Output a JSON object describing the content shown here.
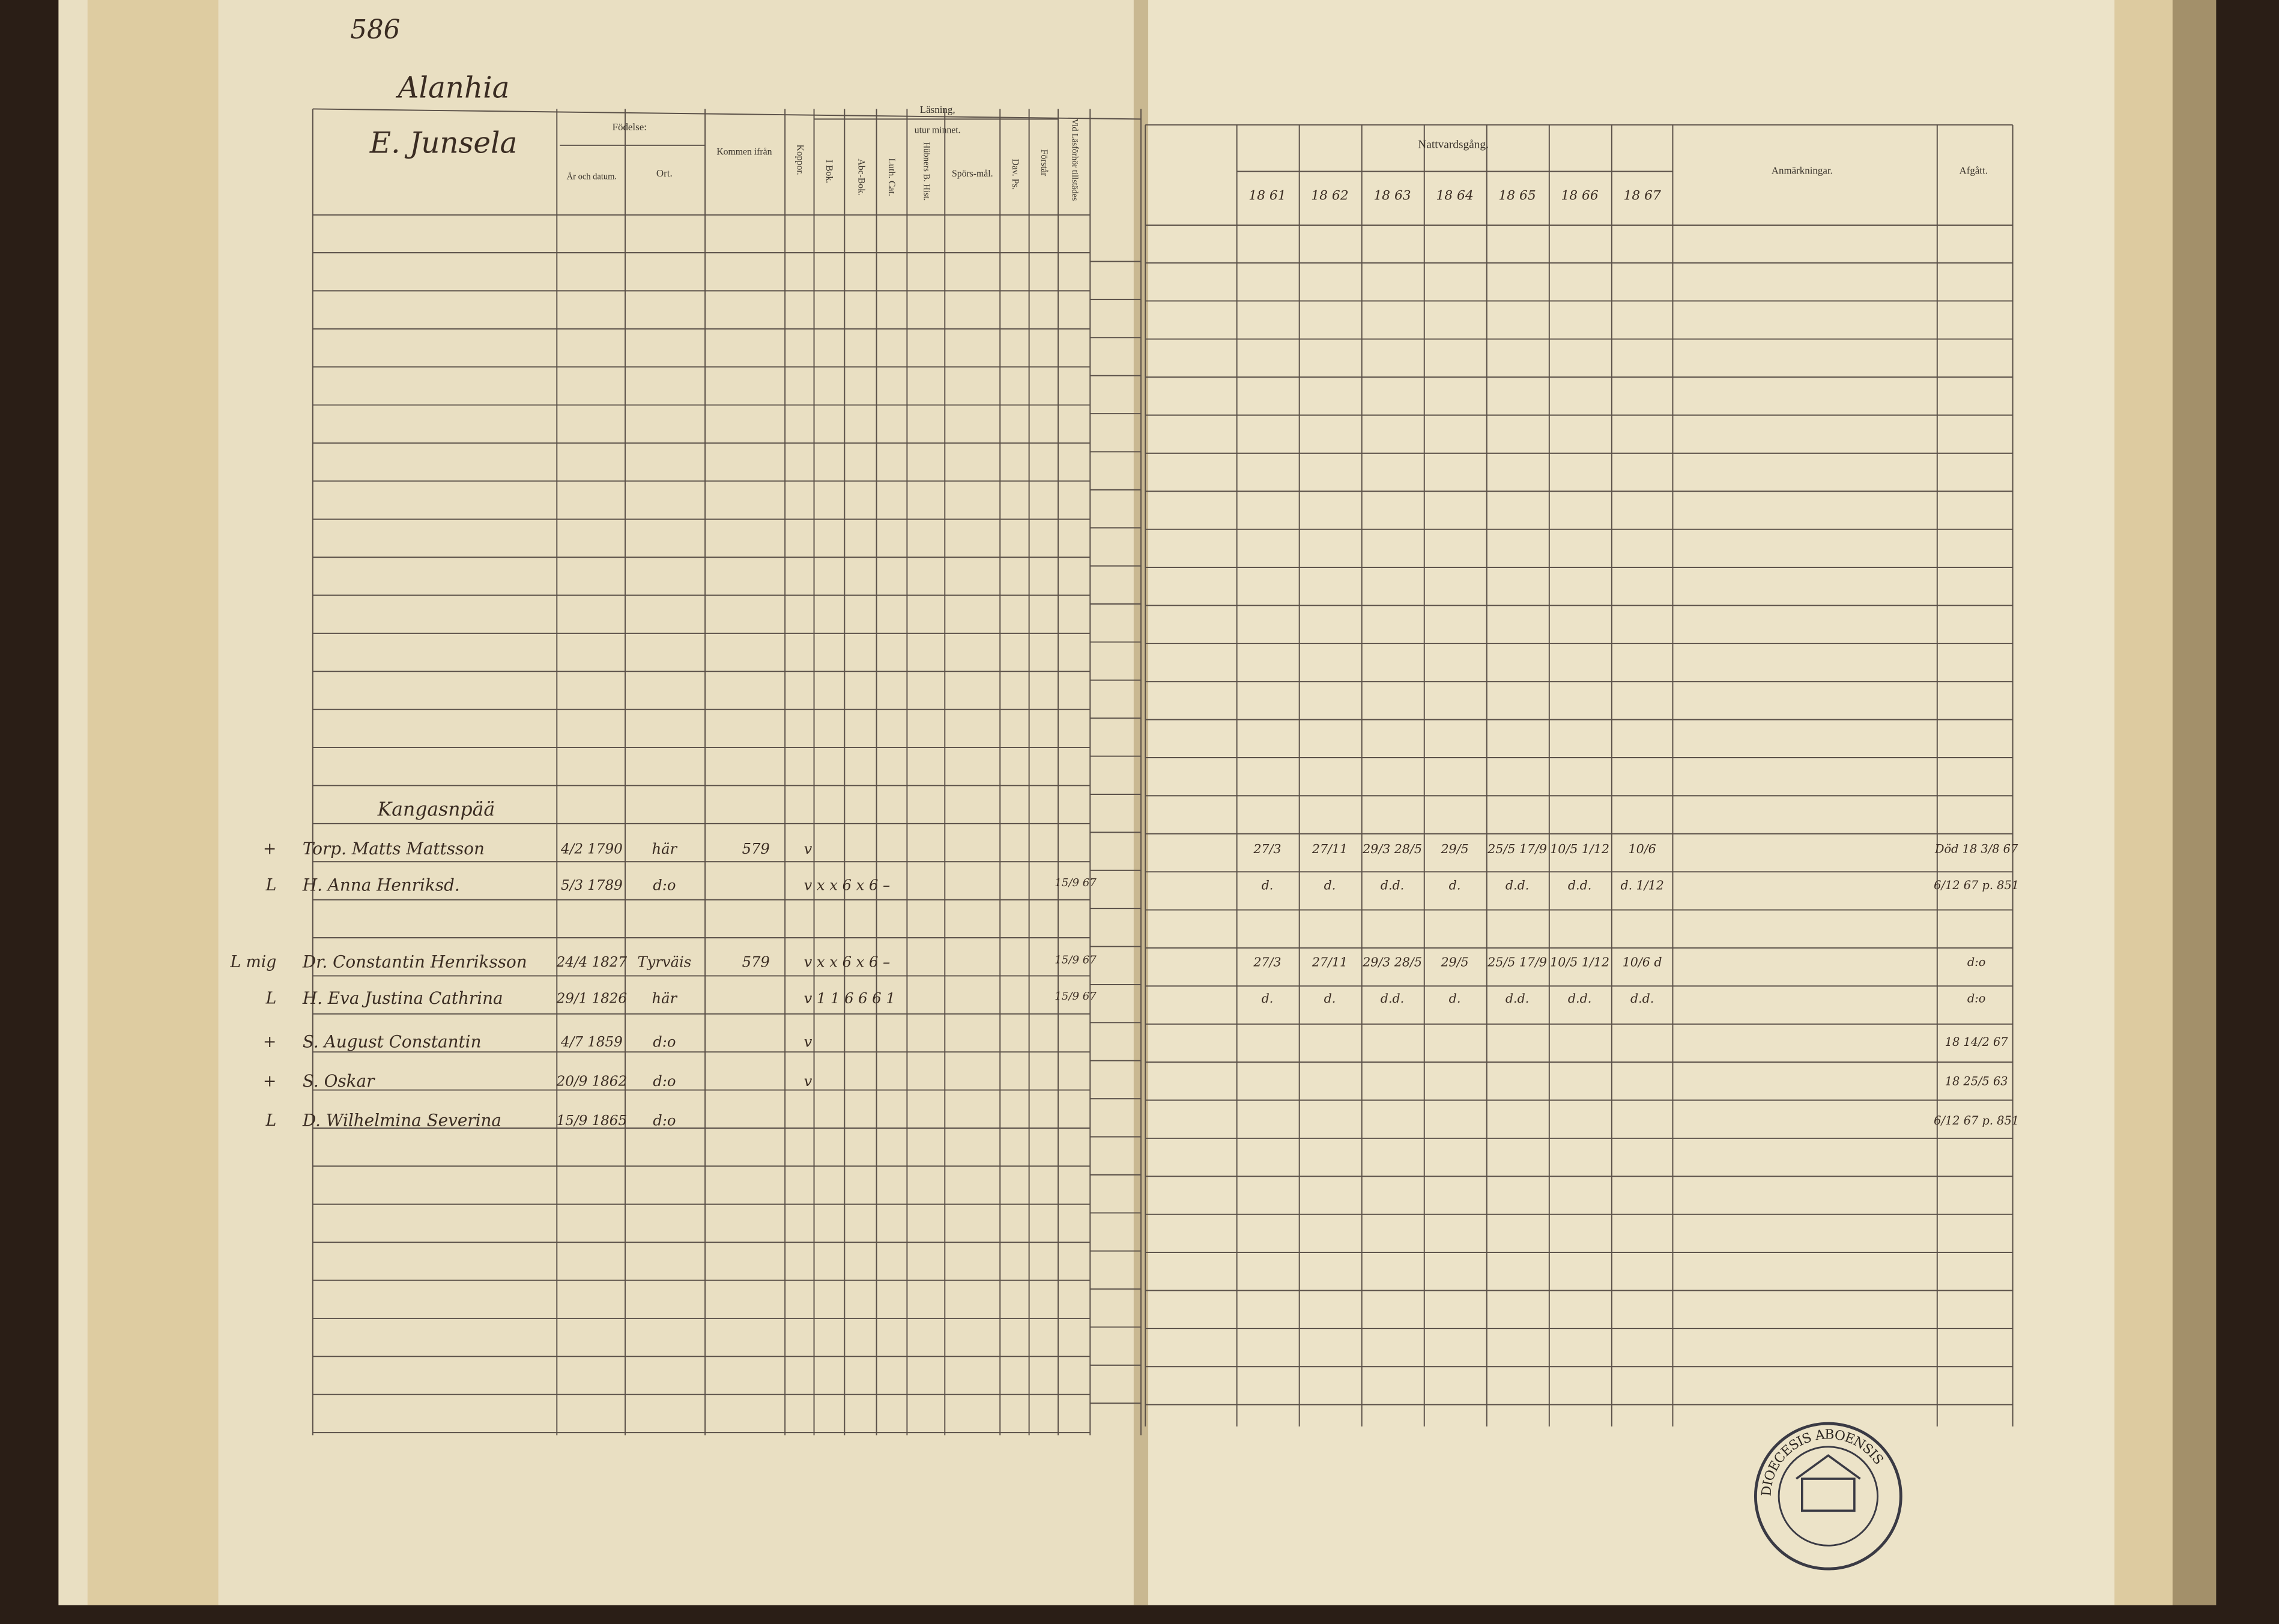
{
  "page_number": "586",
  "village": "Alanhia",
  "farm": "E. Junsela",
  "left_headers": {
    "birth": "Födelse:",
    "birth_date": "År och datum.",
    "birth_place": "Ort.",
    "came_from": "Kommen ifrån",
    "smallpox": "Koppor.",
    "reading": "Läsning,",
    "by_heart": "utur minnet.",
    "in_book": "I Bok.",
    "abc_book": "Abc-Bok.",
    "luther_cat": "Luth. Cat.",
    "hubner": "Hübners B. Hist.",
    "questions": "Spörs-mål.",
    "david_ps": "Dav. Ps.",
    "understands": "Förstår",
    "attended": "Vid Läsförhör tillstädes"
  },
  "right_headers": {
    "communion": "Nattvardsgång.",
    "years": [
      "18 61",
      "18 62",
      "18 63",
      "18 64",
      "18 65",
      "18 66",
      "18 67"
    ],
    "remarks": "Anmärkningar.",
    "departed": "Afgått."
  },
  "section": "Kangasnpää",
  "entries": [
    {
      "mark": "+",
      "name": "Torp. Matts Mattsson",
      "born": "4/2 1790",
      "place": "här",
      "from": "579",
      "reading": "v",
      "communion": [
        "27/3",
        "27/11",
        "29/3 28/5",
        "29/5",
        "25/5 17/9",
        "10/5 1/12",
        "10/6"
      ],
      "departed": "Död 18 3/8 67"
    },
    {
      "mark": "L",
      "name": "H. Anna Henriksd.",
      "born": "5/3 1789",
      "place": "d:o",
      "reading": "v x x 6 x 6 –",
      "attended": "15/9 67",
      "communion": [
        "d.",
        "d.",
        "d.d.",
        "d.",
        "d.d.",
        "d.d.",
        "d. 1/12"
      ],
      "departed": "6/12 67 p. 851"
    },
    {
      "mark": "L mig",
      "name": "Dr. Constantin Henriksson",
      "born": "24/4 1827",
      "place": "Tyrväis",
      "from": "579",
      "reading": "v x x 6 x 6 –",
      "attended": "15/9 67",
      "communion": [
        "27/3",
        "27/11",
        "29/3 28/5",
        "29/5",
        "25/5 17/9",
        "10/5 1/12",
        "10/6 d"
      ],
      "departed": "d:o"
    },
    {
      "mark": "L",
      "name": "H. Eva Justina Cathrina",
      "born": "29/1 1826",
      "place": "här",
      "reading": "v 1 1 6 6 6 1",
      "attended": "15/9 67",
      "communion": [
        "d.",
        "d.",
        "d.d.",
        "d.",
        "d.d.",
        "d.d.",
        "d.d."
      ],
      "departed": "d:o"
    },
    {
      "mark": "+",
      "name": "S. August Constantin",
      "born": "4/7 1859",
      "place": "d:o",
      "reading": "v",
      "departed": "18 14/2 67"
    },
    {
      "mark": "+",
      "name": "S. Oskar",
      "born": "20/9 1862",
      "place": "d:o",
      "reading": "v",
      "departed": "18 25/5 63"
    },
    {
      "mark": "L",
      "name": "D. Wilhelmina Severina",
      "born": "15/9 1865",
      "place": "d:o",
      "departed": "6/12 67 p. 851"
    }
  ],
  "stamp": "DIOECESIS ABOENSIS"
}
